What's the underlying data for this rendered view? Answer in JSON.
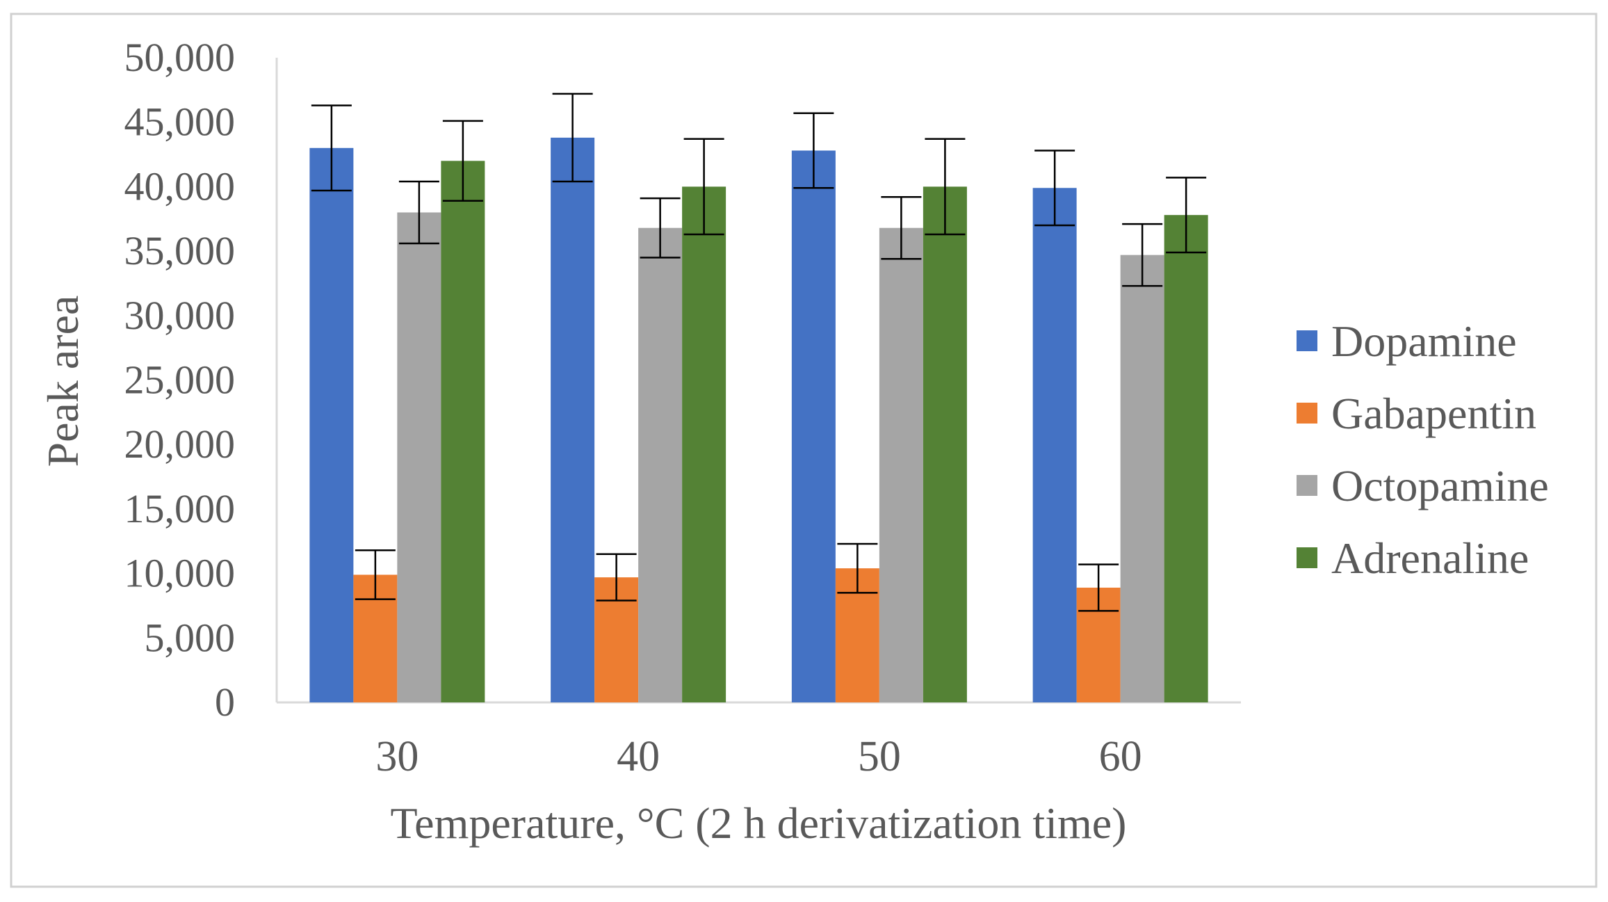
{
  "chart_data": {
    "type": "bar",
    "title": "",
    "xlabel": "Temperature, °C (2 h derivatization time)",
    "ylabel": "Peak area",
    "categories": [
      "30",
      "40",
      "50",
      "60"
    ],
    "ylim": [
      0,
      50000
    ],
    "yticks": [
      0,
      5000,
      10000,
      15000,
      20000,
      25000,
      30000,
      35000,
      40000,
      45000,
      50000
    ],
    "ytick_labels": [
      "0",
      "5,000",
      "10,000",
      "15,000",
      "20,000",
      "25,000",
      "30,000",
      "35,000",
      "40,000",
      "45,000",
      "50,000"
    ],
    "grid": false,
    "legend_position": "right",
    "series": [
      {
        "name": "Dopamine",
        "color": "#4472C4",
        "values": [
          43000,
          43800,
          42800,
          39900
        ],
        "errors": [
          3300,
          3400,
          2900,
          2900
        ]
      },
      {
        "name": "Gabapentin",
        "color": "#ED7D31",
        "values": [
          9900,
          9700,
          10400,
          8900
        ],
        "errors": [
          1900,
          1800,
          1900,
          1800
        ]
      },
      {
        "name": "Octopamine",
        "color": "#A5A5A5",
        "values": [
          38000,
          36800,
          36800,
          34700
        ],
        "errors": [
          2400,
          2300,
          2400,
          2400
        ]
      },
      {
        "name": "Adrenaline",
        "color": "#548235",
        "values": [
          42000,
          40000,
          40000,
          37800
        ],
        "errors": [
          3100,
          3700,
          3700,
          2900
        ]
      }
    ]
  }
}
